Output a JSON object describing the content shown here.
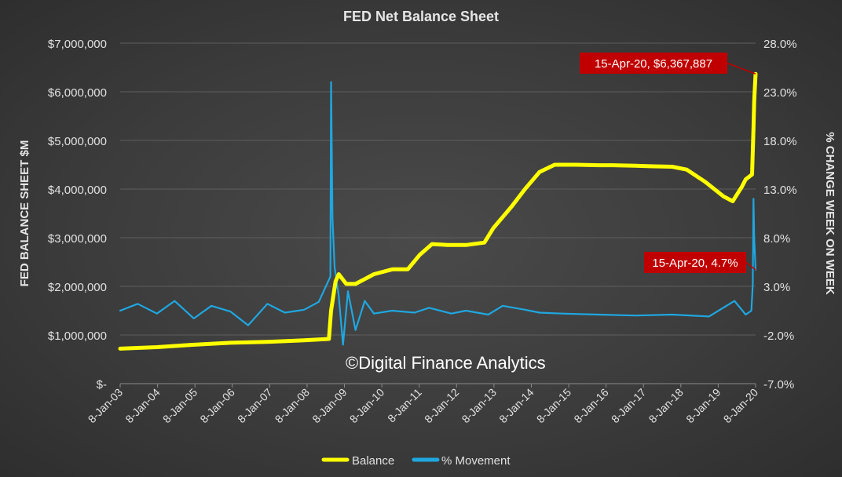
{
  "chart_data": {
    "type": "line",
    "title": "FED Net Balance Sheet",
    "ylabel": "FED BALANCE SHEET $M",
    "y2label": "% CHANGE WEEK ON WEEK",
    "watermark": "©Digital Finance Analytics",
    "ylim": [
      0,
      7000000
    ],
    "y2lim": [
      -7.0,
      28.0
    ],
    "y_ticks": [
      "$-",
      "$1,000,000",
      "$2,000,000",
      "$3,000,000",
      "$4,000,000",
      "$5,000,000",
      "$6,000,000",
      "$7,000,000"
    ],
    "y2_ticks": [
      "-7.0%",
      "-2.0%",
      "3.0%",
      "8.0%",
      "13.0%",
      "18.0%",
      "23.0%",
      "28.0%"
    ],
    "x_ticks": [
      "8-Jan-03",
      "8-Jan-04",
      "8-Jan-05",
      "8-Jan-06",
      "8-Jan-07",
      "8-Jan-08",
      "8-Jan-09",
      "8-Jan-10",
      "8-Jan-11",
      "8-Jan-12",
      "8-Jan-13",
      "8-Jan-14",
      "8-Jan-15",
      "8-Jan-16",
      "8-Jan-17",
      "8-Jan-18",
      "8-Jan-19",
      "8-Jan-20"
    ],
    "x_range": [
      "2003-01-08",
      "2020-04-15"
    ],
    "grid": true,
    "legend_position": "bottom",
    "series": [
      {
        "name": "Balance",
        "axis": "left",
        "color": "#ffff00",
        "x": [
          "2003-01-08",
          "2004-01-08",
          "2005-01-08",
          "2006-01-08",
          "2007-01-08",
          "2008-01-08",
          "2008-09-10",
          "2008-10-01",
          "2008-11-15",
          "2008-12-17",
          "2009-03-01",
          "2009-06-01",
          "2009-09-01",
          "2009-12-01",
          "2010-06-01",
          "2010-11-01",
          "2011-03-01",
          "2011-06-30",
          "2011-12-01",
          "2012-06-01",
          "2012-12-01",
          "2013-03-01",
          "2013-09-01",
          "2014-01-08",
          "2014-06-01",
          "2014-10-29",
          "2015-06-01",
          "2016-01-08",
          "2016-06-01",
          "2017-01-08",
          "2017-06-01",
          "2018-01-08",
          "2018-06-01",
          "2018-12-01",
          "2019-06-01",
          "2019-09-01",
          "2019-12-01",
          "2020-01-08",
          "2020-03-11",
          "2020-03-25",
          "2020-04-01",
          "2020-04-08",
          "2020-04-15"
        ],
        "values": [
          720000,
          750000,
          800000,
          840000,
          860000,
          890000,
          920000,
          1500000,
          2100000,
          2250000,
          2050000,
          2050000,
          2150000,
          2250000,
          2350000,
          2350000,
          2650000,
          2870000,
          2850000,
          2850000,
          2900000,
          3200000,
          3650000,
          4000000,
          4350000,
          4500000,
          4500000,
          4490000,
          4490000,
          4480000,
          4470000,
          4460000,
          4400000,
          4150000,
          3850000,
          3750000,
          4050000,
          4200000,
          4300000,
          5250000,
          5800000,
          6100000,
          6367887
        ]
      },
      {
        "name": "% Movement",
        "axis": "right",
        "color": "#1fa7e0",
        "x": [
          "2003-01-08",
          "2003-07-01",
          "2004-01-08",
          "2004-07-01",
          "2005-01-08",
          "2005-07-01",
          "2006-01-08",
          "2006-07-01",
          "2007-01-08",
          "2007-07-01",
          "2008-01-08",
          "2008-06-01",
          "2008-09-24",
          "2008-10-01",
          "2008-10-15",
          "2008-11-05",
          "2008-12-17",
          "2009-01-28",
          "2009-03-18",
          "2009-06-01",
          "2009-09-01",
          "2009-12-01",
          "2010-06-01",
          "2011-01-08",
          "2011-06-01",
          "2012-01-08",
          "2012-06-01",
          "2013-01-08",
          "2013-06-01",
          "2014-01-08",
          "2014-06-01",
          "2015-01-08",
          "2016-01-08",
          "2017-01-08",
          "2018-01-08",
          "2019-01-08",
          "2019-09-18",
          "2020-01-08",
          "2020-03-04",
          "2020-03-18",
          "2020-03-25",
          "2020-04-01",
          "2020-04-15"
        ],
        "values": [
          0.5,
          1.2,
          0.2,
          1.5,
          -0.3,
          1.0,
          0.4,
          -1.0,
          1.2,
          0.3,
          0.6,
          1.4,
          4.0,
          24.0,
          10.0,
          5.0,
          2.0,
          -3.0,
          2.5,
          -1.5,
          1.5,
          0.2,
          0.5,
          0.3,
          0.8,
          0.2,
          0.5,
          0.1,
          1.0,
          0.6,
          0.3,
          0.2,
          0.1,
          0.0,
          0.1,
          -0.1,
          1.5,
          0.1,
          0.5,
          3.2,
          12.0,
          8.0,
          4.7
        ]
      }
    ],
    "annotations": [
      {
        "text": "15-Apr-20,  $6,367,887",
        "series": "Balance",
        "x": "2020-04-15",
        "value": 6367887
      },
      {
        "text": "15-Apr-20, 4.7%",
        "series": "% Movement",
        "x": "2020-04-15",
        "value": 4.7
      }
    ]
  }
}
